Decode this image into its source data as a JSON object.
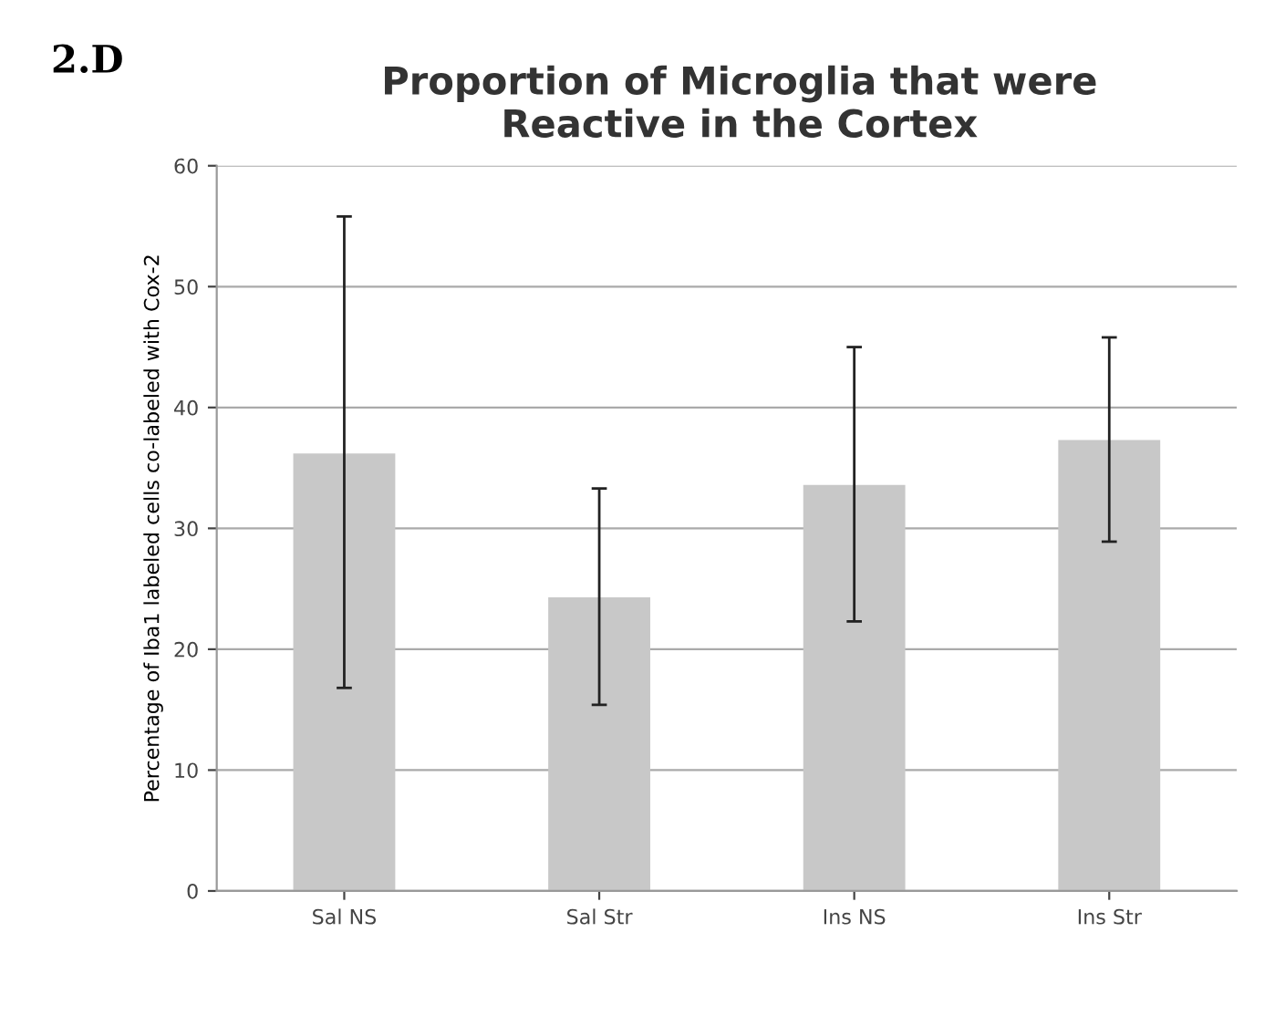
{
  "chart_data": {
    "type": "bar",
    "title": "Proportion of Microglia that were\nReactive in the Cortex",
    "ylabel": "Percentage of Iba1 labeled cells co-labeled with Cox-2",
    "annotations": [
      "2.D"
    ],
    "categories": [
      "Sal NS",
      "Sal Str",
      "Ins NS",
      "Ins Str"
    ],
    "values": [
      36.2,
      24.3,
      33.6,
      37.3
    ],
    "color": "#c8c8c8",
    "errors": [
      [
        16.8,
        55.8
      ],
      [
        15.4,
        33.3
      ],
      [
        22.3,
        45.0
      ],
      [
        28.9,
        45.8
      ]
    ],
    "ylim": [
      0,
      60
    ],
    "yticks": [
      0,
      10,
      20,
      30,
      40,
      50,
      60
    ],
    "grid": "y"
  }
}
